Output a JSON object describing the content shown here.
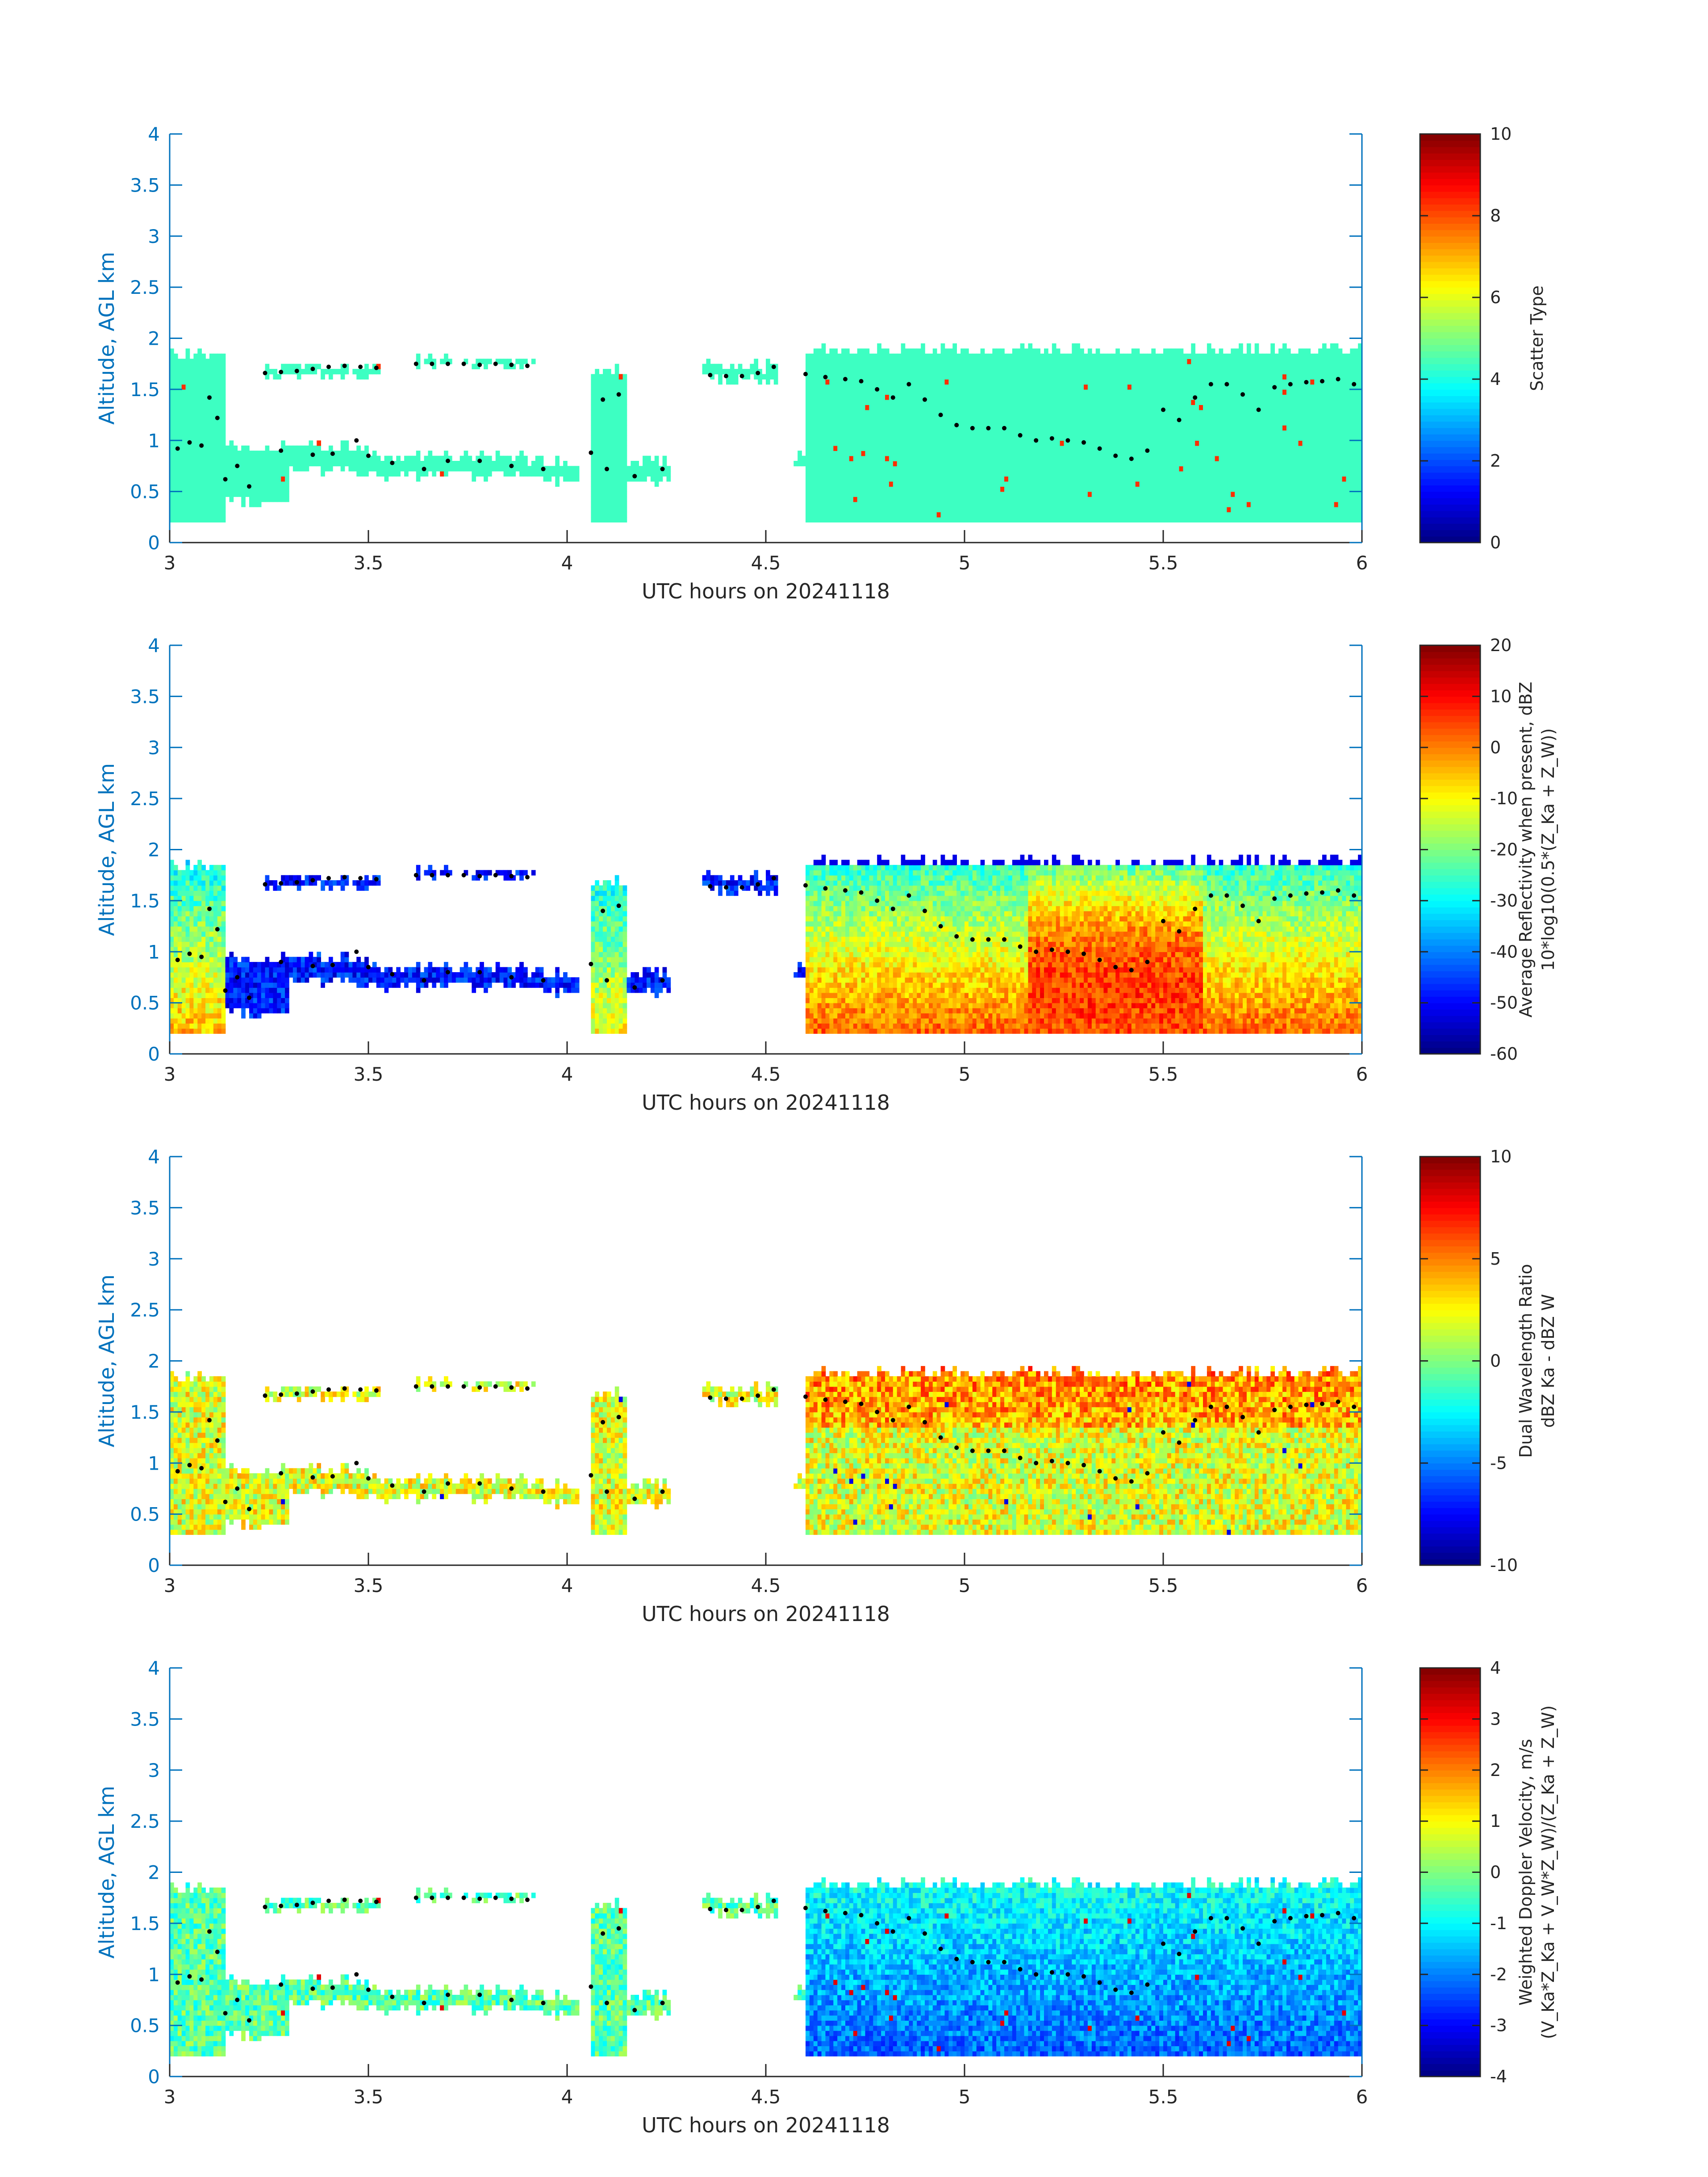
{
  "chart_data": [
    {
      "type": "heatmap",
      "title": "",
      "xlabel": "UTC hours on 20241118",
      "ylabel": "Altitude, AGL km",
      "xlim": [
        3,
        6
      ],
      "ylim": [
        0,
        4
      ],
      "xticks": [
        "3",
        "3.5",
        "4",
        "4.5",
        "5",
        "5.5",
        "6"
      ],
      "yticks": [
        "0",
        "0.5",
        "1",
        "1.5",
        "2",
        "2.5",
        "3",
        "3.5",
        "4"
      ],
      "colorbar": {
        "label_lines": [
          "Scatter Type"
        ],
        "clim": [
          0,
          10
        ],
        "ticks": [
          "0",
          "2",
          "4",
          "6",
          "8",
          "10"
        ]
      },
      "field": "scatter"
    },
    {
      "type": "heatmap",
      "title": "",
      "xlabel": "UTC hours on 20241118",
      "ylabel": "Altitude, AGL km",
      "xlim": [
        3,
        6
      ],
      "ylim": [
        0,
        4
      ],
      "xticks": [
        "3",
        "3.5",
        "4",
        "4.5",
        "5",
        "5.5",
        "6"
      ],
      "yticks": [
        "0",
        "0.5",
        "1",
        "1.5",
        "2",
        "2.5",
        "3",
        "3.5",
        "4"
      ],
      "colorbar": {
        "label_lines": [
          "Average Reflectivity when present, dBZ",
          "10*log10(0.5*(Z_Ka + Z_W))"
        ],
        "clim": [
          -60,
          20
        ],
        "ticks": [
          "-60",
          "-50",
          "-40",
          "-30",
          "-20",
          "-10",
          "0",
          "10",
          "20"
        ]
      },
      "field": "reflectivity"
    },
    {
      "type": "heatmap",
      "title": "",
      "xlabel": "UTC hours on 20241118",
      "ylabel": "Altitude, AGL km",
      "xlim": [
        3,
        6
      ],
      "ylim": [
        0,
        4
      ],
      "xticks": [
        "3",
        "3.5",
        "4",
        "4.5",
        "5",
        "5.5",
        "6"
      ],
      "yticks": [
        "0",
        "0.5",
        "1",
        "1.5",
        "2",
        "2.5",
        "3",
        "3.5",
        "4"
      ],
      "colorbar": {
        "label_lines": [
          "Dual Wavelength Ratio",
          "dBZ Ka - dBZ W"
        ],
        "clim": [
          -10,
          10
        ],
        "ticks": [
          "-10",
          "-5",
          "0",
          "5",
          "10"
        ]
      },
      "field": "dwr"
    },
    {
      "type": "heatmap",
      "title": "",
      "xlabel": "UTC hours on 20241118",
      "ylabel": "Altitude, AGL km",
      "xlim": [
        3,
        6
      ],
      "ylim": [
        0,
        4
      ],
      "xticks": [
        "3",
        "3.5",
        "4",
        "4.5",
        "5",
        "5.5",
        "6"
      ],
      "yticks": [
        "0",
        "0.5",
        "1",
        "1.5",
        "2",
        "2.5",
        "3",
        "3.5",
        "4"
      ],
      "colorbar": {
        "label_lines": [
          "Weighted Doppler Velocity, m/s",
          "(V_Ka*Z_Ka + V_W*Z_W)/(Z_Ka + Z_W)"
        ],
        "clim": [
          -4,
          4
        ],
        "ticks": [
          "-4",
          "-3",
          "-2",
          "-1",
          "0",
          "1",
          "2",
          "3",
          "4"
        ]
      },
      "field": "velocity"
    }
  ],
  "cloud_segments_km": [
    {
      "t0": 3.0,
      "t1": 3.14,
      "bottom": 0.2,
      "top": 1.9
    },
    {
      "t0": 3.14,
      "t1": 3.3,
      "bottom": 0.35,
      "top": 1.0
    },
    {
      "t0": 3.24,
      "t1": 3.53,
      "bottom": 1.58,
      "top": 1.78
    },
    {
      "t0": 3.25,
      "t1": 3.5,
      "bottom": 0.65,
      "top": 1.0
    },
    {
      "t0": 3.5,
      "t1": 3.9,
      "bottom": 0.6,
      "top": 0.9
    },
    {
      "t0": 3.62,
      "t1": 3.92,
      "bottom": 1.68,
      "top": 1.84
    },
    {
      "t0": 3.9,
      "t1": 4.03,
      "bottom": 0.55,
      "top": 0.85
    },
    {
      "t0": 4.06,
      "t1": 4.15,
      "bottom": 0.2,
      "top": 1.75
    },
    {
      "t0": 4.15,
      "t1": 4.26,
      "bottom": 0.55,
      "top": 0.85
    },
    {
      "t0": 4.34,
      "t1": 4.53,
      "bottom": 1.55,
      "top": 1.78
    },
    {
      "t0": 4.57,
      "t1": 4.62,
      "bottom": 0.72,
      "top": 0.92
    },
    {
      "t0": 4.6,
      "t1": 6.0,
      "bottom": 0.2,
      "top": 1.95
    }
  ],
  "layer_top_dots_km": [
    [
      3.02,
      0.92
    ],
    [
      3.05,
      0.98
    ],
    [
      3.08,
      0.95
    ],
    [
      3.1,
      1.42
    ],
    [
      3.12,
      1.22
    ],
    [
      3.14,
      0.62
    ],
    [
      3.17,
      0.75
    ],
    [
      3.2,
      0.55
    ],
    [
      3.24,
      1.66
    ],
    [
      3.28,
      1.67
    ],
    [
      3.32,
      1.68
    ],
    [
      3.36,
      1.7
    ],
    [
      3.4,
      1.72
    ],
    [
      3.44,
      1.73
    ],
    [
      3.48,
      1.72
    ],
    [
      3.52,
      1.71
    ],
    [
      3.28,
      0.9
    ],
    [
      3.36,
      0.86
    ],
    [
      3.41,
      0.87
    ],
    [
      3.47,
      1.0
    ],
    [
      3.5,
      0.85
    ],
    [
      3.56,
      0.78
    ],
    [
      3.64,
      0.72
    ],
    [
      3.7,
      0.8
    ],
    [
      3.78,
      0.8
    ],
    [
      3.86,
      0.75
    ],
    [
      3.94,
      0.72
    ],
    [
      3.62,
      1.75
    ],
    [
      3.66,
      1.75
    ],
    [
      3.7,
      1.75
    ],
    [
      3.74,
      1.75
    ],
    [
      3.78,
      1.74
    ],
    [
      3.82,
      1.75
    ],
    [
      3.86,
      1.74
    ],
    [
      3.9,
      1.73
    ],
    [
      4.06,
      0.88
    ],
    [
      4.09,
      1.4
    ],
    [
      4.1,
      0.72
    ],
    [
      4.13,
      1.45
    ],
    [
      4.17,
      0.65
    ],
    [
      4.24,
      0.72
    ],
    [
      4.36,
      1.64
    ],
    [
      4.4,
      1.63
    ],
    [
      4.44,
      1.63
    ],
    [
      4.48,
      1.66
    ],
    [
      4.52,
      1.72
    ],
    [
      4.6,
      1.65
    ],
    [
      4.65,
      1.62
    ],
    [
      4.7,
      1.6
    ],
    [
      4.74,
      1.58
    ],
    [
      4.78,
      1.5
    ],
    [
      4.82,
      1.42
    ],
    [
      4.86,
      1.55
    ],
    [
      4.9,
      1.4
    ],
    [
      4.94,
      1.25
    ],
    [
      4.98,
      1.15
    ],
    [
      5.02,
      1.12
    ],
    [
      5.06,
      1.12
    ],
    [
      5.1,
      1.12
    ],
    [
      5.14,
      1.05
    ],
    [
      5.18,
      1.0
    ],
    [
      5.22,
      1.02
    ],
    [
      5.26,
      1.0
    ],
    [
      5.3,
      0.98
    ],
    [
      5.34,
      0.92
    ],
    [
      5.38,
      0.85
    ],
    [
      5.42,
      0.82
    ],
    [
      5.46,
      0.9
    ],
    [
      5.5,
      1.3
    ],
    [
      5.54,
      1.2
    ],
    [
      5.58,
      1.42
    ],
    [
      5.62,
      1.55
    ],
    [
      5.66,
      1.55
    ],
    [
      5.7,
      1.45
    ],
    [
      5.74,
      1.3
    ],
    [
      5.78,
      1.52
    ],
    [
      5.82,
      1.55
    ],
    [
      5.86,
      1.57
    ],
    [
      5.9,
      1.58
    ],
    [
      5.94,
      1.6
    ],
    [
      5.98,
      1.55
    ]
  ]
}
